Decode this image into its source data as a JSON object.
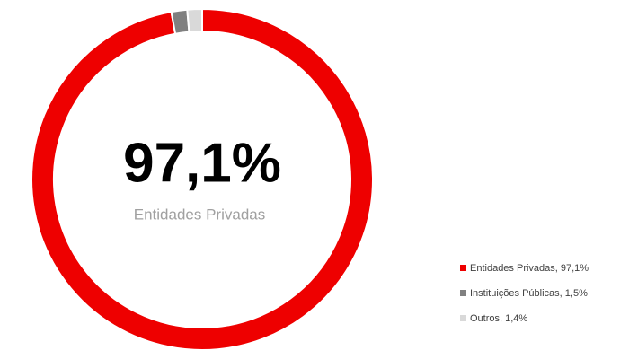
{
  "chart_data": {
    "type": "donut",
    "categories": [
      "Entidades Privadas, 97,1%",
      "Instituições Públicas, 1,5%",
      "Outros, 1,4%"
    ],
    "values": [
      97.1,
      1.5,
      1.4
    ],
    "colors": [
      "#ee0000",
      "#808080",
      "#d9d9d9"
    ],
    "center_value": "97,1%",
    "center_label": "Entidades Privadas",
    "legend": "bottom-right"
  }
}
